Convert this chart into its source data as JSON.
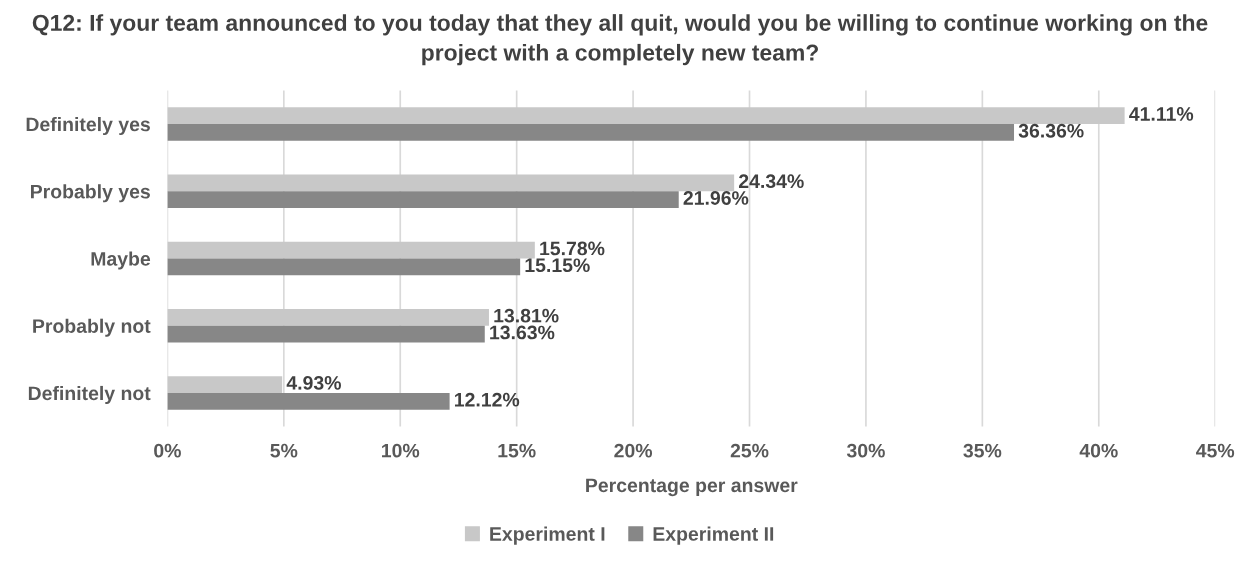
{
  "chart_data": {
    "type": "bar",
    "orientation": "horizontal",
    "title": "Q12: If your team announced to you today that they all quit, would you be willing to continue working on the project with a completely new team?",
    "xlabel": "Percentage per answer",
    "categories": [
      "Definitely yes",
      "Probably yes",
      "Maybe",
      "Probably not",
      "Definitely not"
    ],
    "series": [
      {
        "name": "Experiment I",
        "color": "#c8c8c8",
        "values": [
          41.11,
          24.34,
          15.78,
          13.81,
          4.93
        ],
        "value_labels": [
          "41.11%",
          "24.34%",
          "15.78%",
          "13.81%",
          "4.93%"
        ]
      },
      {
        "name": "Experiment II",
        "color": "#878787",
        "values": [
          36.36,
          21.96,
          15.15,
          13.63,
          12.12
        ],
        "value_labels": [
          "36.36%",
          "21.96%",
          "15.15%",
          "13.63%",
          "12.12%"
        ]
      }
    ],
    "xlim": [
      0,
      45
    ],
    "xticks": [
      {
        "value": 0,
        "label": "0%"
      },
      {
        "value": 5,
        "label": "5%"
      },
      {
        "value": 10,
        "label": "10%"
      },
      {
        "value": 15,
        "label": "15%"
      },
      {
        "value": 20,
        "label": "20%"
      },
      {
        "value": 25,
        "label": "25%"
      },
      {
        "value": 30,
        "label": "30%"
      },
      {
        "value": 35,
        "label": "35%"
      },
      {
        "value": 40,
        "label": "40%"
      },
      {
        "value": 45,
        "label": "45%"
      }
    ],
    "grid": "x",
    "legend": "bottom"
  }
}
